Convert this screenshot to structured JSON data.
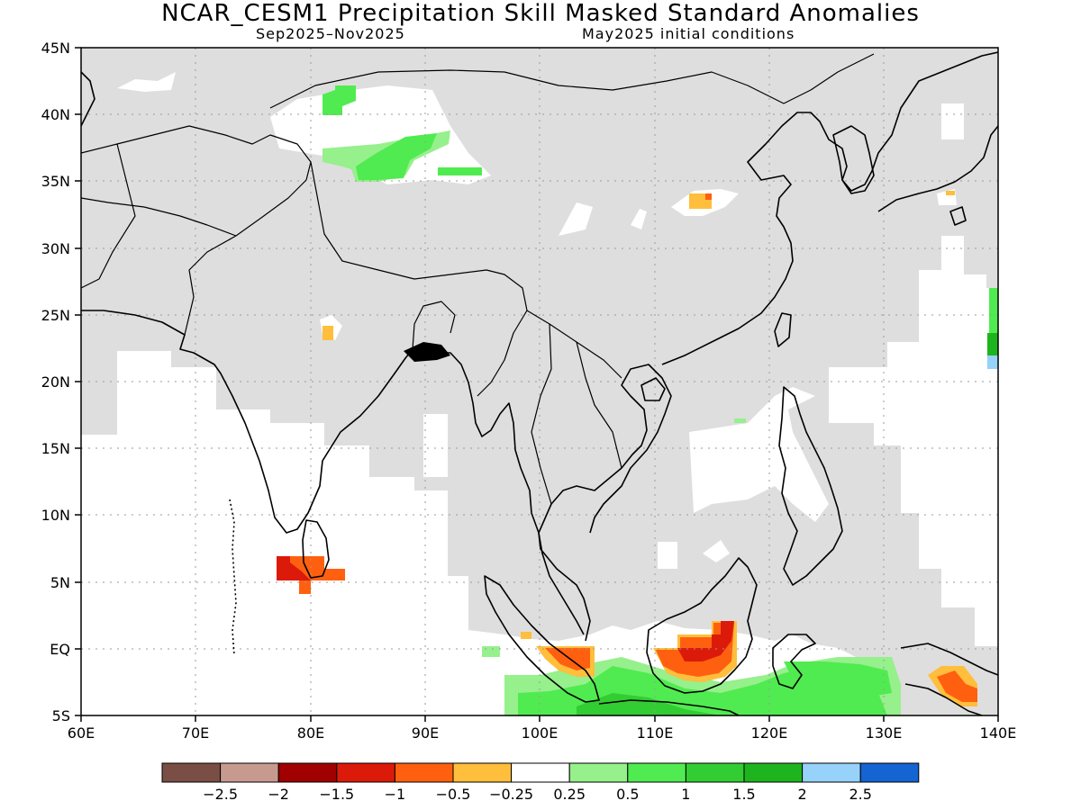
{
  "title": "NCAR_CESM1 Precipitation Skill Masked Standard Anomalies",
  "subtitle_left": "Sep2025–Nov2025",
  "subtitle_right": "May2025 initial conditions",
  "map": {
    "lon_range": [
      60,
      140
    ],
    "lat_range": [
      -5,
      45
    ],
    "lon_ticks": [
      "60E",
      "70E",
      "80E",
      "90E",
      "100E",
      "110E",
      "120E",
      "130E",
      "140E"
    ],
    "lat_ticks": [
      "45N",
      "40N",
      "35N",
      "30N",
      "25N",
      "20N",
      "15N",
      "10N",
      "5N",
      "EQ",
      "5S"
    ],
    "grid": "dotted",
    "colors": {
      "land_mask": "#dedede",
      "ocean": "#ffffff",
      "coast": "#000000"
    }
  },
  "colorbar": {
    "colors": [
      "#7a4e44",
      "#c79a90",
      "#a00000",
      "#dc1a0a",
      "#ff6010",
      "#ffbe3c",
      "#ffffff",
      "#96f08c",
      "#50eb50",
      "#32cd32",
      "#1eb41e",
      "#96d2fa",
      "#1464d2"
    ],
    "labels": [
      "−2.5",
      "−2",
      "−1.5",
      "−1",
      "−0.5",
      "−0.25",
      "0.25",
      "0.5",
      "1",
      "1.5",
      "2",
      "2.5"
    ]
  }
}
